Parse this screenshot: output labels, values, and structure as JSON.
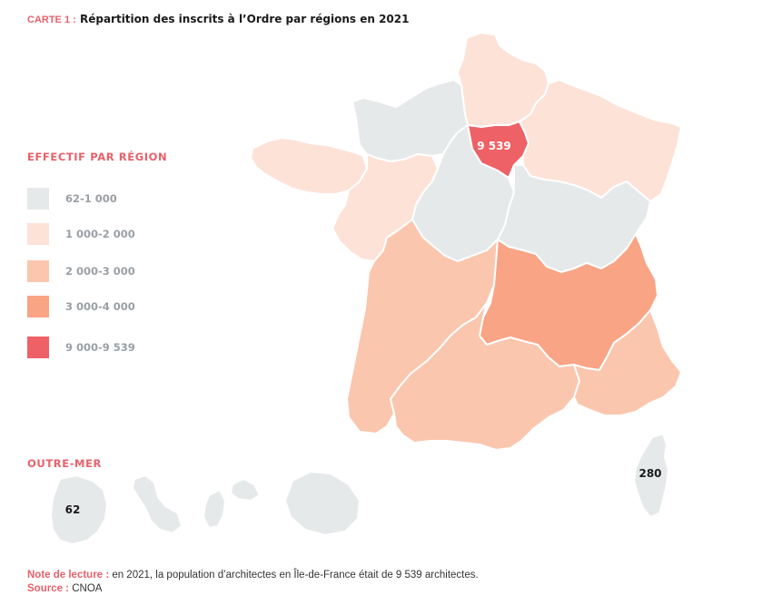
{
  "title": {
    "tag": "CARTE 1 :",
    "text": "Répartition des inscrits à l’Ordre par régions en 2021"
  },
  "legend": {
    "title": "EFFECTIF PAR RÉGION",
    "items": [
      {
        "label": "62-1 000",
        "color": "#e6e9ea"
      },
      {
        "label": "1 000-2 000",
        "color": "#fde2d8"
      },
      {
        "label": "2 000-3 000",
        "color": "#fbc6ae"
      },
      {
        "label": "3 000-4 000",
        "color": "#f8a485"
      },
      {
        "label": "9 000-9 539",
        "color": "#ee6166"
      }
    ]
  },
  "regions": [
    {
      "name": "Hauts-de-France",
      "class": "1 000-2 000"
    },
    {
      "name": "Normandie",
      "class": "62-1 000"
    },
    {
      "name": "Bretagne",
      "class": "1 000-2 000"
    },
    {
      "name": "Pays de la Loire",
      "class": "1 000-2 000"
    },
    {
      "name": "Centre-Val de Loire",
      "class": "62-1 000"
    },
    {
      "name": "Île-de-France",
      "class": "9 000-9 539",
      "value_label": "9 539"
    },
    {
      "name": "Grand Est",
      "class": "1 000-2 000"
    },
    {
      "name": "Bourgogne-Franche-Comté",
      "class": "62-1 000"
    },
    {
      "name": "Nouvelle-Aquitaine",
      "class": "2 000-3 000"
    },
    {
      "name": "Auvergne-Rhône-Alpes",
      "class": "3 000-4 000"
    },
    {
      "name": "Occitanie",
      "class": "2 000-3 000"
    },
    {
      "name": "Provence-Alpes-Côte d’Azur",
      "class": "2 000-3 000"
    },
    {
      "name": "Corse",
      "class": "62-1 000",
      "value_label": "280"
    }
  ],
  "outremer": {
    "title": "OUTRE-MER",
    "value_label": "62"
  },
  "note": {
    "lecture_key": "Note de lecture :",
    "lecture_text": "en 2021, la population d’architectes en Île-de-France était de 9 539 architectes.",
    "source_key": "Source :",
    "source_text": "CNOA"
  }
}
